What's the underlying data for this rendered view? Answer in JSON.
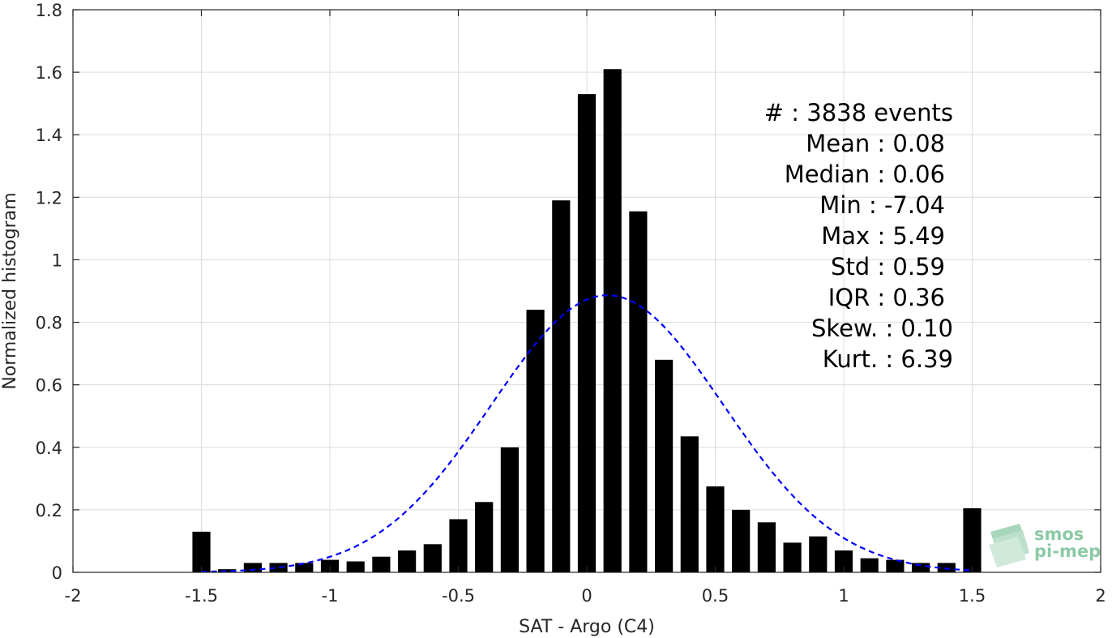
{
  "chart_data": {
    "type": "bar",
    "xlabel": "SAT - Argo (C4)",
    "ylabel": "Normalized histogram",
    "xlim": [
      -2,
      2
    ],
    "ylim": [
      0,
      1.8
    ],
    "grid": true,
    "x_ticks": [
      -2,
      -1.5,
      -1,
      -0.5,
      0,
      0.5,
      1,
      1.5,
      2
    ],
    "x_tick_labels": [
      "-2",
      "-1.5",
      "-1",
      "-0.5",
      "0",
      "0.5",
      "1",
      "1.5",
      "2"
    ],
    "y_ticks": [
      0,
      0.2,
      0.4,
      0.6,
      0.8,
      1,
      1.2,
      1.4,
      1.6,
      1.8
    ],
    "y_tick_labels": [
      "0",
      "0.2",
      "0.4",
      "0.6",
      "0.8",
      "1",
      "1.2",
      "1.4",
      "1.6",
      "1.8"
    ],
    "bar_color": "#000000",
    "bins": [
      -1.5,
      -1.4,
      -1.3,
      -1.2,
      -1.1,
      -1.0,
      -0.9,
      -0.8,
      -0.7,
      -0.6,
      -0.5,
      -0.4,
      -0.3,
      -0.2,
      -0.1,
      0.0,
      0.1,
      0.2,
      0.3,
      0.4,
      0.5,
      0.6,
      0.7,
      0.8,
      0.9,
      1.0,
      1.1,
      1.2,
      1.3,
      1.4,
      1.5
    ],
    "values": [
      0.13,
      0.01,
      0.03,
      0.03,
      0.03,
      0.04,
      0.035,
      0.05,
      0.07,
      0.09,
      0.17,
      0.225,
      0.4,
      0.84,
      1.19,
      1.53,
      1.61,
      1.155,
      0.68,
      0.435,
      0.275,
      0.2,
      0.16,
      0.095,
      0.115,
      0.07,
      0.045,
      0.04,
      0.03,
      0.03,
      0.205
    ],
    "fit": {
      "type": "normal-pdf",
      "mean": 0.08,
      "std": 0.45,
      "x_range": [
        -1.5,
        1.5
      ],
      "color": "#0000ff",
      "style": "dashed"
    },
    "stats": [
      "#  : 3838 events",
      "Mean : 0.08",
      "Median : 0.06",
      "Min : -7.04",
      "Max : 5.49",
      "Std : 0.59",
      "IQR : 0.36",
      "Skew. : 0.10",
      "Kurt. : 6.39"
    ]
  },
  "logo": {
    "line1": "smos",
    "line2": "pi-mep",
    "color": "#8cc9a6"
  }
}
